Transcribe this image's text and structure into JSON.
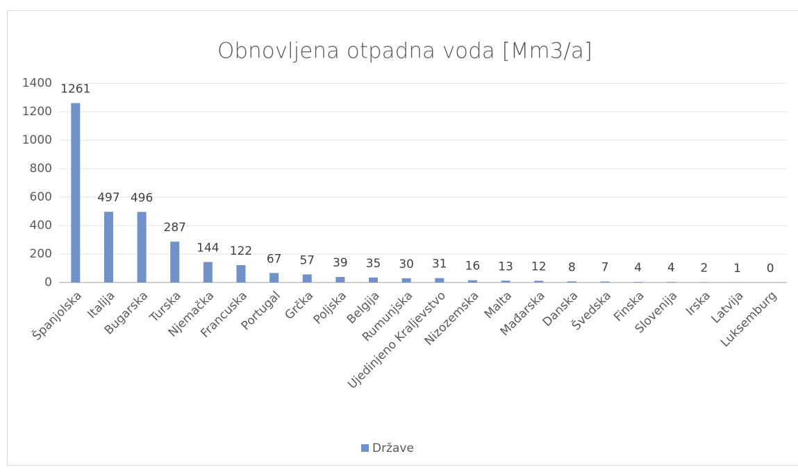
{
  "chart_data": {
    "type": "bar",
    "title": "Obnovljena otpadna voda [Mm3/a]",
    "categories": [
      "Španjolska",
      "Italija",
      "Bugarska",
      "Turska",
      "Njemačka",
      "Francuska",
      "Portugal",
      "Grčka",
      "Poljska",
      "Belgija",
      "Rumunjska",
      "Ujedinjeno Kraljevstvo",
      "Nizozemska",
      "Malta",
      "Mađarska",
      "Danska",
      "Švedska",
      "Finska",
      "Slovenija",
      "Irska",
      "Latvija",
      "Luksemburg"
    ],
    "series": [
      {
        "name": "Države",
        "color": "#7092c9",
        "values": [
          1261,
          497,
          496,
          287,
          144,
          122,
          67,
          57,
          39,
          35,
          30,
          31,
          16,
          13,
          12,
          8,
          7,
          4,
          4,
          2,
          1,
          0
        ]
      }
    ],
    "ylim": [
      0,
      1400
    ],
    "yticks": [
      0,
      200,
      400,
      600,
      800,
      1000,
      1200,
      1400
    ],
    "grid": true,
    "legend": "bottom"
  }
}
